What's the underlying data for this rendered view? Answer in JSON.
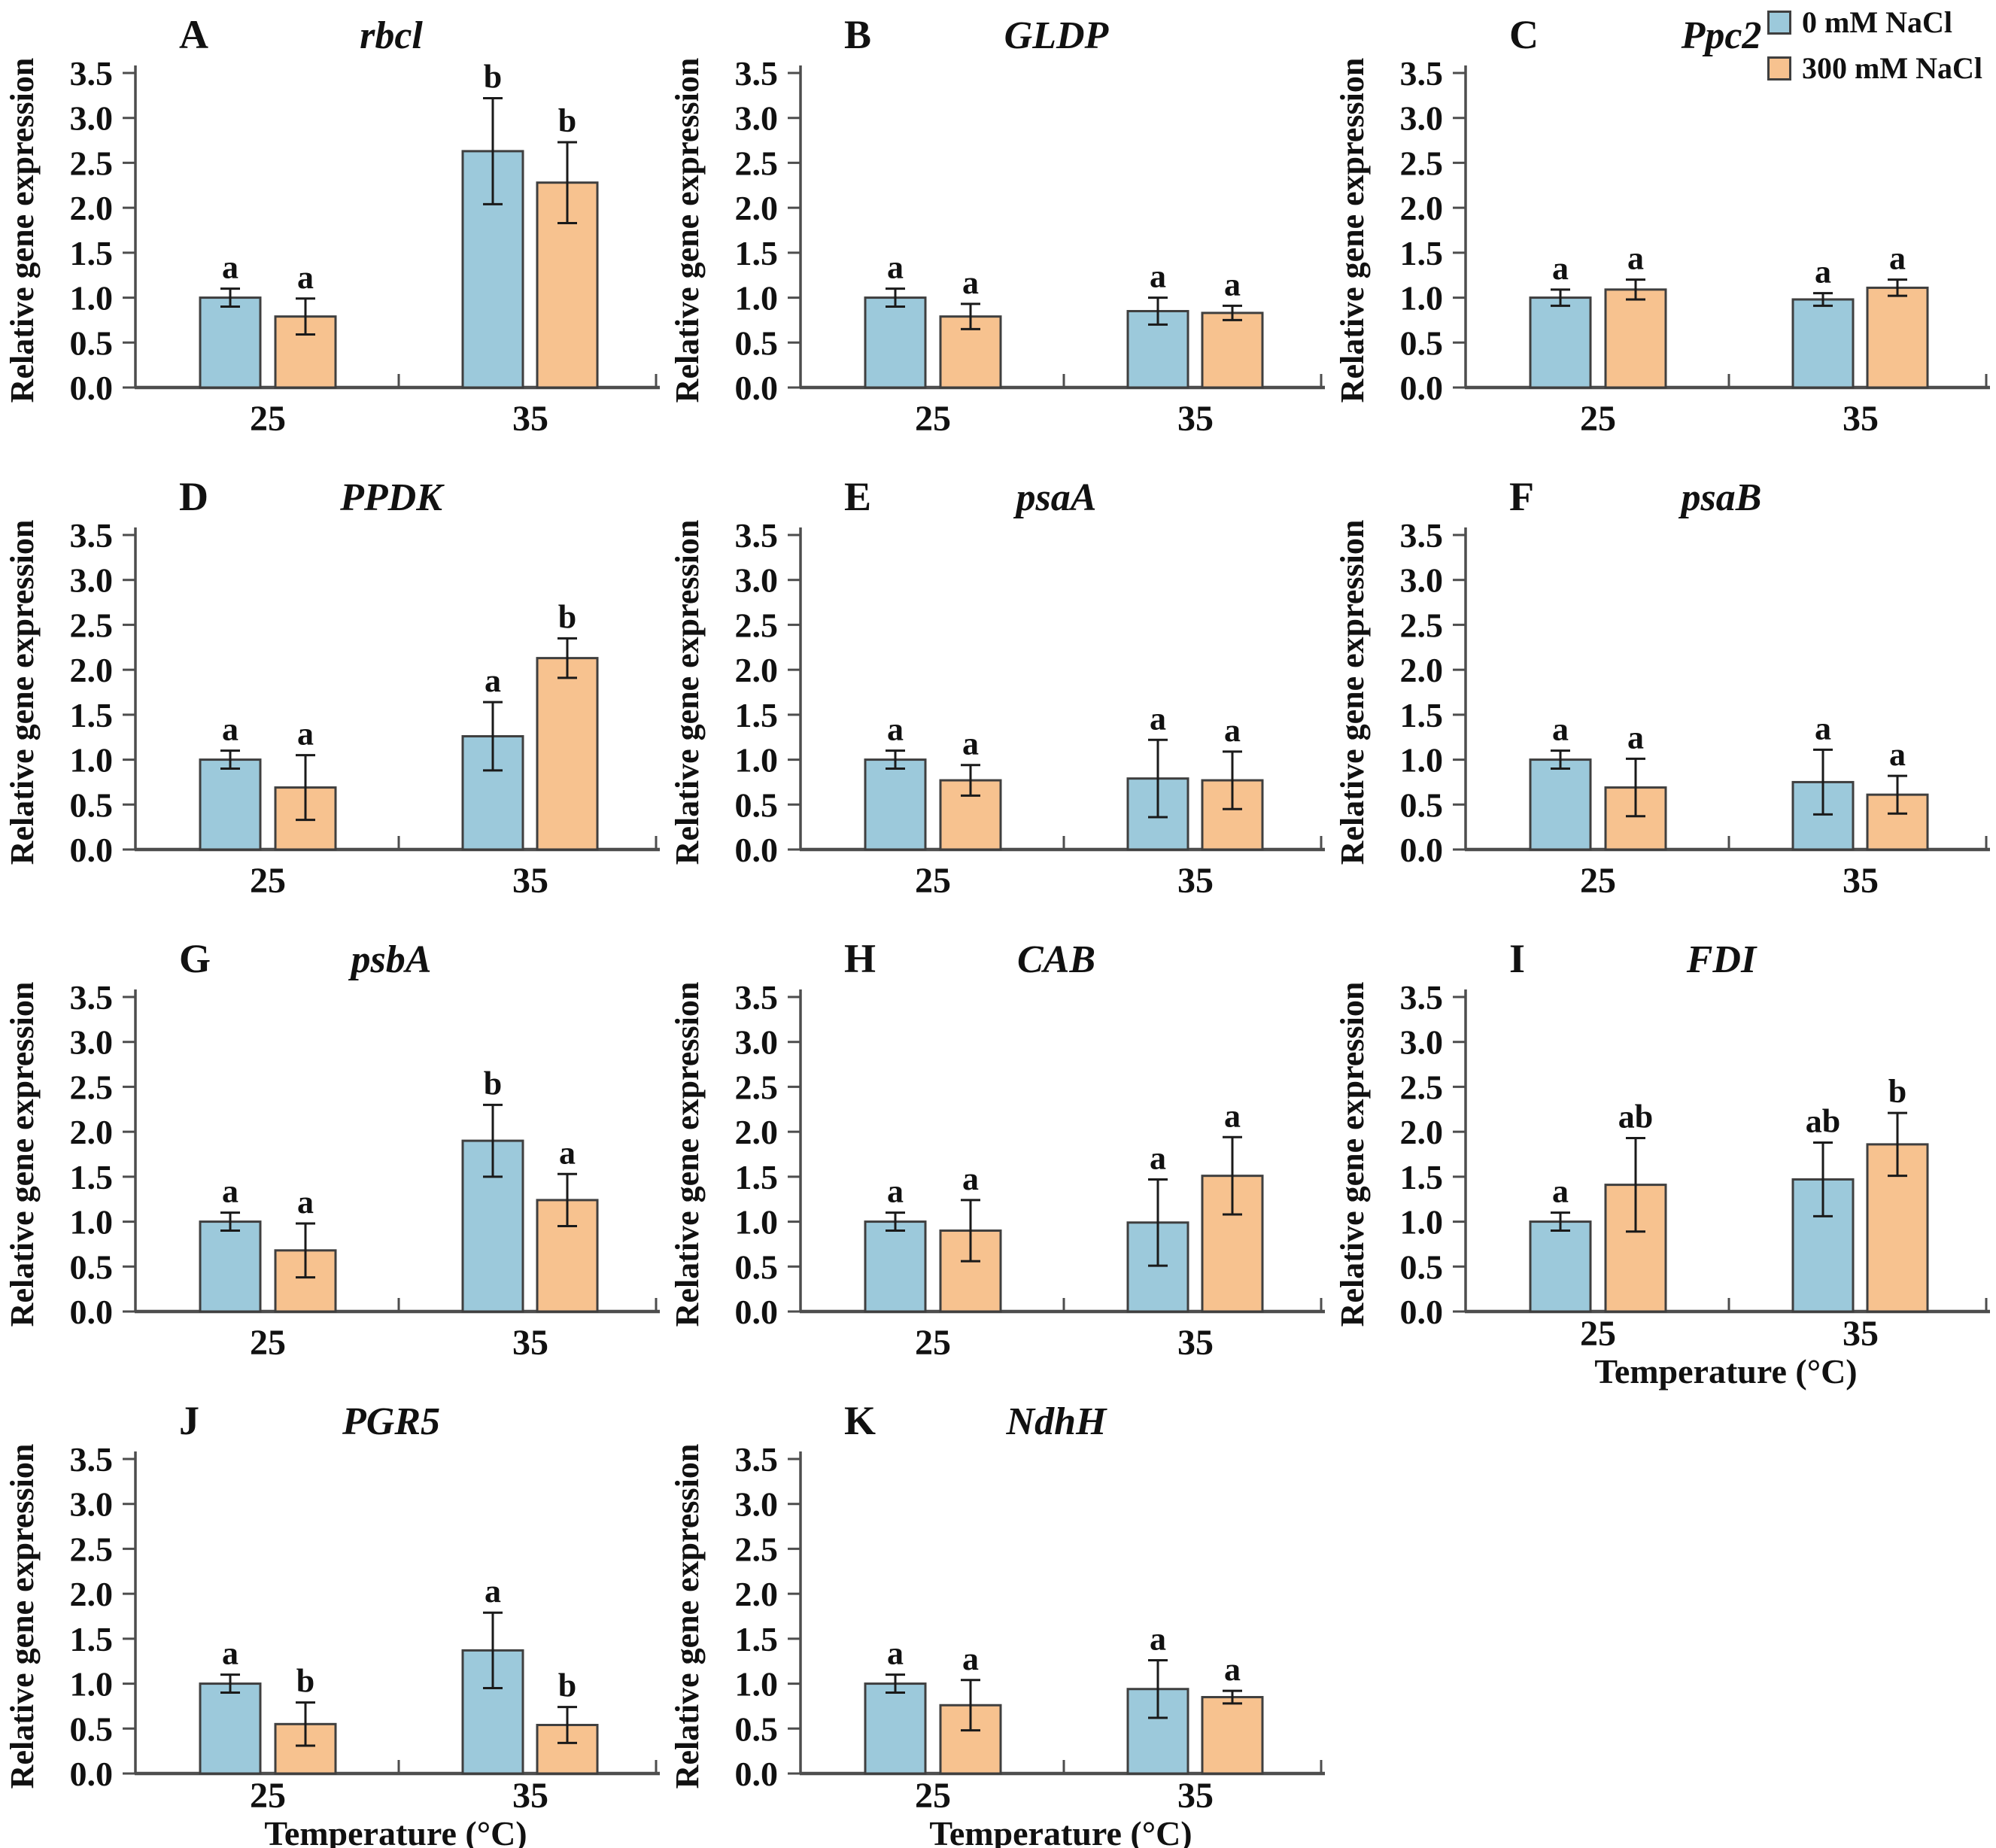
{
  "legend": {
    "items": [
      {
        "label": "0 mM NaCl",
        "color": "#9CC9DB"
      },
      {
        "label": "300 mM NaCl",
        "color": "#F7C28F"
      }
    ]
  },
  "axes": {
    "ylabel": "Relative gene expression",
    "xlabel": "Temperature (°C)",
    "ylim": [
      0,
      3.5
    ],
    "yticks": [
      "0.0",
      "0.5",
      "1.0",
      "1.5",
      "2.0",
      "2.5",
      "3.0",
      "3.5"
    ],
    "categories": [
      "25",
      "35"
    ],
    "grid": false,
    "legend_position": "top-right"
  },
  "chart_data": [
    {
      "type": "bar",
      "panel": "A",
      "title": "rbcl",
      "show_xlabel": false,
      "categories": [
        "25",
        "35"
      ],
      "series": [
        {
          "name": "0 mM NaCl",
          "values": [
            1.0,
            2.63
          ],
          "errors": [
            0.1,
            0.59
          ],
          "letters": [
            "a",
            "b"
          ]
        },
        {
          "name": "300 mM NaCl",
          "values": [
            0.79,
            2.28
          ],
          "errors": [
            0.2,
            0.45
          ],
          "letters": [
            "a",
            "b"
          ]
        }
      ]
    },
    {
      "type": "bar",
      "panel": "B",
      "title": "GLDP",
      "show_xlabel": false,
      "categories": [
        "25",
        "35"
      ],
      "series": [
        {
          "name": "0 mM NaCl",
          "values": [
            1.0,
            0.85
          ],
          "errors": [
            0.1,
            0.15
          ],
          "letters": [
            "a",
            "a"
          ]
        },
        {
          "name": "300 mM NaCl",
          "values": [
            0.79,
            0.83
          ],
          "errors": [
            0.14,
            0.08
          ],
          "letters": [
            "a",
            "a"
          ]
        }
      ]
    },
    {
      "type": "bar",
      "panel": "C",
      "title": "Ppc2",
      "show_xlabel": false,
      "categories": [
        "25",
        "35"
      ],
      "series": [
        {
          "name": "0 mM NaCl",
          "values": [
            1.0,
            0.98
          ],
          "errors": [
            0.09,
            0.07
          ],
          "letters": [
            "a",
            "a"
          ]
        },
        {
          "name": "300 mM NaCl",
          "values": [
            1.09,
            1.11
          ],
          "errors": [
            0.11,
            0.09
          ],
          "letters": [
            "a",
            "a"
          ]
        }
      ]
    },
    {
      "type": "bar",
      "panel": "D",
      "title": "PPDK",
      "show_xlabel": false,
      "categories": [
        "25",
        "35"
      ],
      "series": [
        {
          "name": "0 mM NaCl",
          "values": [
            1.0,
            1.26
          ],
          "errors": [
            0.1,
            0.38
          ],
          "letters": [
            "a",
            "a"
          ]
        },
        {
          "name": "300 mM NaCl",
          "values": [
            0.69,
            2.13
          ],
          "errors": [
            0.36,
            0.22
          ],
          "letters": [
            "a",
            "b"
          ]
        }
      ]
    },
    {
      "type": "bar",
      "panel": "E",
      "title": "psaA",
      "show_xlabel": false,
      "categories": [
        "25",
        "35"
      ],
      "series": [
        {
          "name": "0 mM NaCl",
          "values": [
            1.0,
            0.79
          ],
          "errors": [
            0.1,
            0.43
          ],
          "letters": [
            "a",
            "a"
          ]
        },
        {
          "name": "300 mM NaCl",
          "values": [
            0.77,
            0.77
          ],
          "errors": [
            0.17,
            0.32
          ],
          "letters": [
            "a",
            "a"
          ]
        }
      ]
    },
    {
      "type": "bar",
      "panel": "F",
      "title": "psaB",
      "show_xlabel": false,
      "categories": [
        "25",
        "35"
      ],
      "series": [
        {
          "name": "0 mM NaCl",
          "values": [
            1.0,
            0.75
          ],
          "errors": [
            0.1,
            0.36
          ],
          "letters": [
            "a",
            "a"
          ]
        },
        {
          "name": "300 mM NaCl",
          "values": [
            0.69,
            0.61
          ],
          "errors": [
            0.32,
            0.21
          ],
          "letters": [
            "a",
            "a"
          ]
        }
      ]
    },
    {
      "type": "bar",
      "panel": "G",
      "title": "psbA",
      "show_xlabel": false,
      "categories": [
        "25",
        "35"
      ],
      "series": [
        {
          "name": "0 mM NaCl",
          "values": [
            1.0,
            1.9
          ],
          "errors": [
            0.1,
            0.4
          ],
          "letters": [
            "a",
            "b"
          ]
        },
        {
          "name": "300 mM NaCl",
          "values": [
            0.68,
            1.24
          ],
          "errors": [
            0.3,
            0.29
          ],
          "letters": [
            "a",
            "a"
          ]
        }
      ]
    },
    {
      "type": "bar",
      "panel": "H",
      "title": "CAB",
      "show_xlabel": false,
      "categories": [
        "25",
        "35"
      ],
      "series": [
        {
          "name": "0 mM NaCl",
          "values": [
            1.0,
            0.99
          ],
          "errors": [
            0.1,
            0.48
          ],
          "letters": [
            "a",
            "a"
          ]
        },
        {
          "name": "300 mM NaCl",
          "values": [
            0.9,
            1.51
          ],
          "errors": [
            0.34,
            0.43
          ],
          "letters": [
            "a",
            "a"
          ]
        }
      ]
    },
    {
      "type": "bar",
      "panel": "I",
      "title": "FDI",
      "show_xlabel": true,
      "categories": [
        "25",
        "35"
      ],
      "series": [
        {
          "name": "0 mM NaCl",
          "values": [
            1.0,
            1.47
          ],
          "errors": [
            0.1,
            0.41
          ],
          "letters": [
            "a",
            "ab"
          ]
        },
        {
          "name": "300 mM NaCl",
          "values": [
            1.41,
            1.86
          ],
          "errors": [
            0.52,
            0.35
          ],
          "letters": [
            "ab",
            "b"
          ]
        }
      ]
    },
    {
      "type": "bar",
      "panel": "J",
      "title": "PGR5",
      "show_xlabel": true,
      "categories": [
        "25",
        "35"
      ],
      "series": [
        {
          "name": "0 mM NaCl",
          "values": [
            1.0,
            1.37
          ],
          "errors": [
            0.1,
            0.42
          ],
          "letters": [
            "a",
            "a"
          ]
        },
        {
          "name": "300 mM NaCl",
          "values": [
            0.55,
            0.54
          ],
          "errors": [
            0.24,
            0.2
          ],
          "letters": [
            "b",
            "b"
          ]
        }
      ]
    },
    {
      "type": "bar",
      "panel": "K",
      "title": "NdhH",
      "show_xlabel": true,
      "categories": [
        "25",
        "35"
      ],
      "series": [
        {
          "name": "0 mM NaCl",
          "values": [
            1.0,
            0.94
          ],
          "errors": [
            0.1,
            0.32
          ],
          "letters": [
            "a",
            "a"
          ]
        },
        {
          "name": "300 mM NaCl",
          "values": [
            0.76,
            0.85
          ],
          "errors": [
            0.28,
            0.07
          ],
          "letters": [
            "a",
            "a"
          ]
        }
      ]
    }
  ]
}
